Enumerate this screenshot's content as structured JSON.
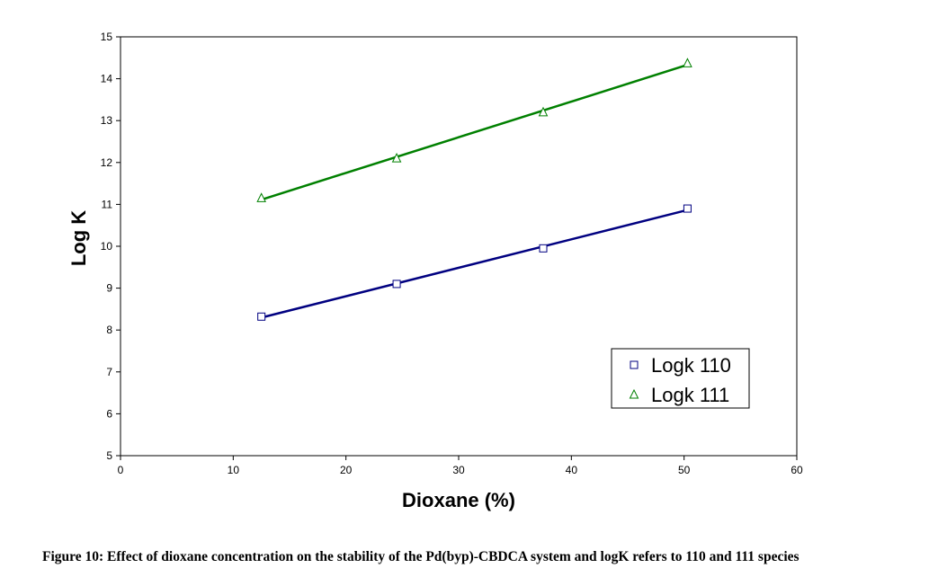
{
  "chart_data": {
    "type": "scatter",
    "xlabel": "Dioxane (%)",
    "ylabel": "Log K",
    "xlim": [
      0,
      60
    ],
    "ylim": [
      5,
      15
    ],
    "x_ticks": [
      "0",
      "10",
      "20",
      "30",
      "40",
      "50",
      "60"
    ],
    "y_ticks": [
      "5",
      "6",
      "7",
      "8",
      "9",
      "10",
      "11",
      "12",
      "13",
      "14",
      "15"
    ],
    "grid": false,
    "legend_position": "bottom-right",
    "trendlines": "linear",
    "series": [
      {
        "name": "Logk 110",
        "marker": "square",
        "marker_color": "#000080",
        "line_color": "#000080",
        "x": [
          12.5,
          24.5,
          37.5,
          50.3
        ],
        "y": [
          8.32,
          9.1,
          9.95,
          10.9
        ]
      },
      {
        "name": "Logk 111",
        "marker": "triangle",
        "marker_color": "#008000",
        "line_color": "#008000",
        "x": [
          12.5,
          24.5,
          37.5,
          50.3
        ],
        "y": [
          11.15,
          12.1,
          13.2,
          14.37
        ]
      }
    ]
  },
  "caption": "Figure 10: Effect of dioxane concentration on the stability of the Pd(byp)-CBDCA system and logK refers to 110 and 111 species"
}
